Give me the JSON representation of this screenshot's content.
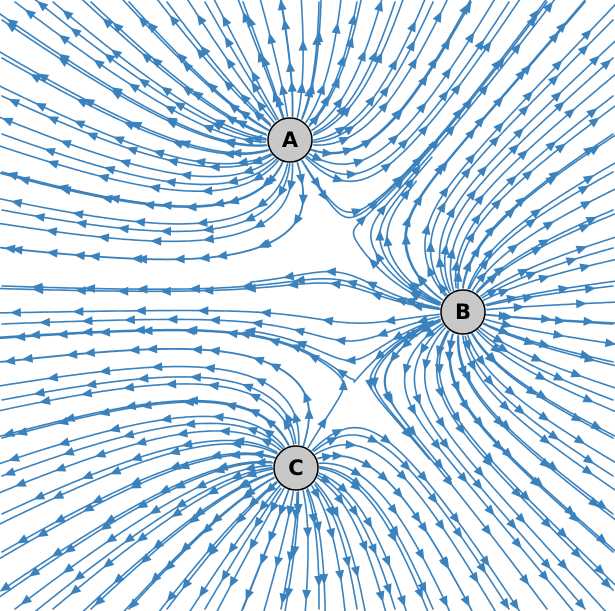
{
  "colors": {
    "field_line": "#3a82be",
    "node_fill": "#c8c8c8",
    "node_stroke": "#000000",
    "background": "#ffffff"
  },
  "nodes": [
    {
      "id": "A",
      "label": "A"
    },
    {
      "id": "B",
      "label": "B"
    },
    {
      "id": "C",
      "label": "C"
    }
  ]
}
